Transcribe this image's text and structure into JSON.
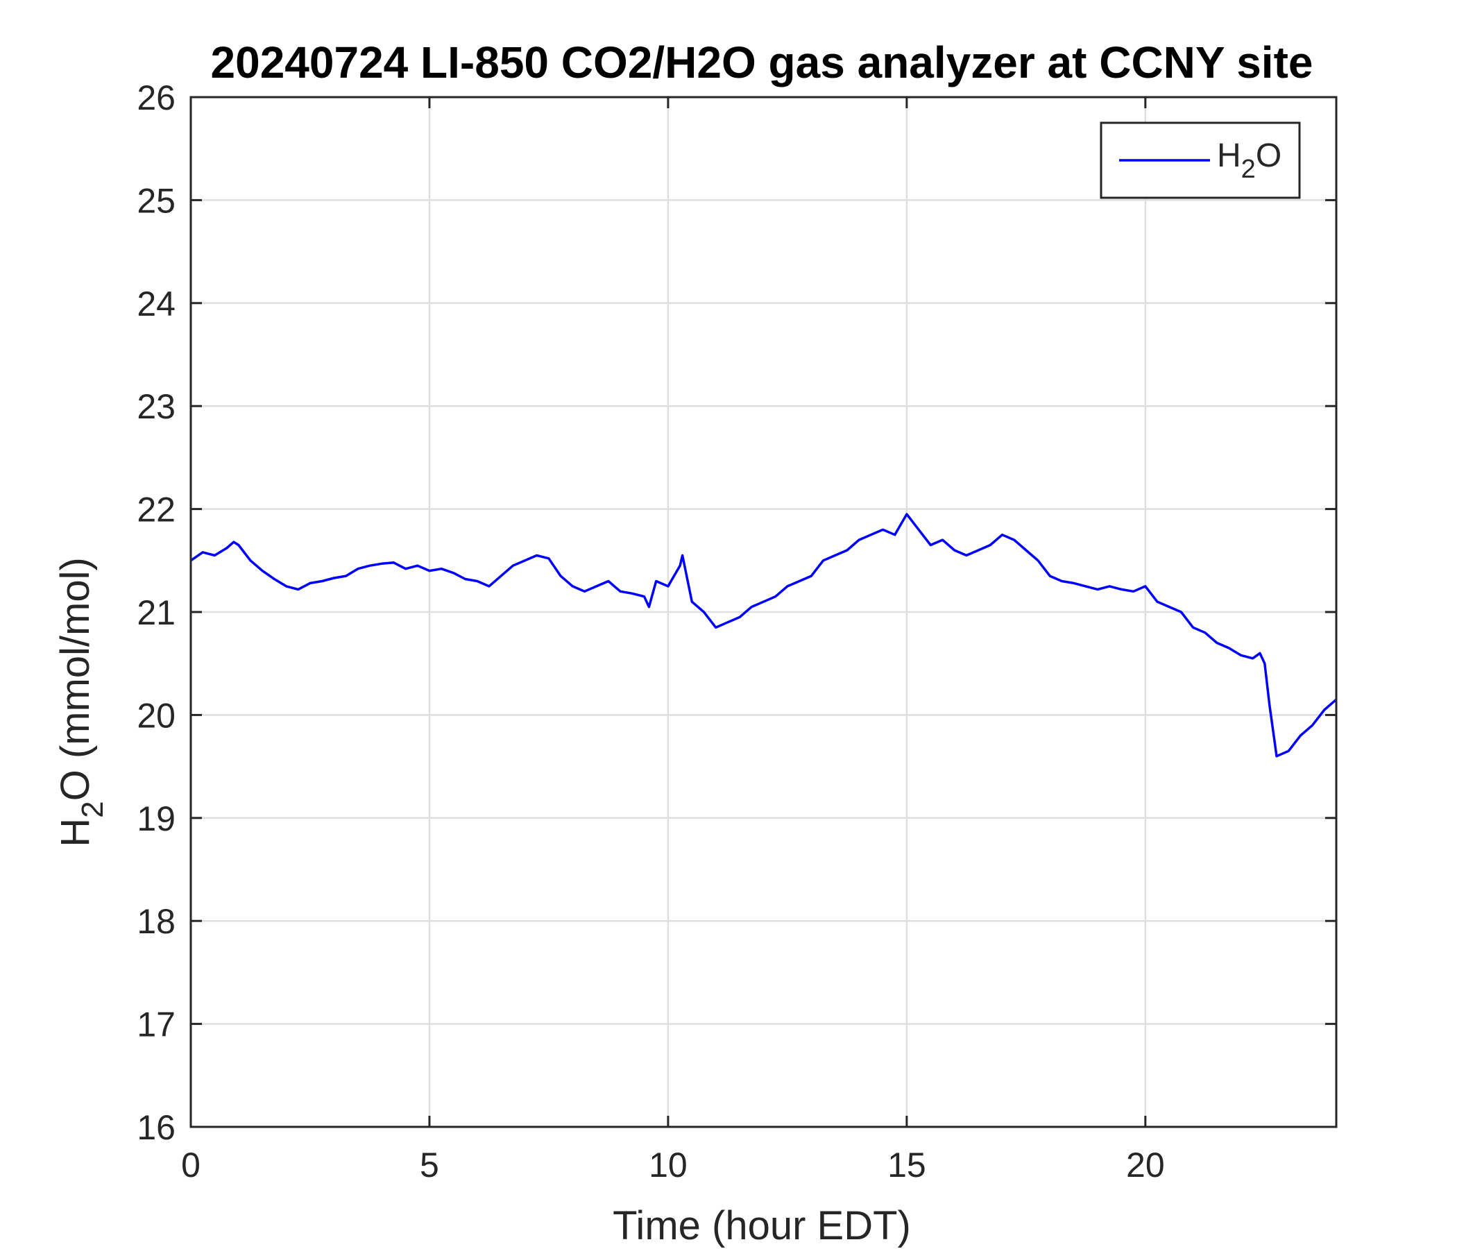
{
  "chart_data": {
    "type": "line",
    "title": "20240724 LI-850 CO2/H2O gas analyzer at CCNY site",
    "xlabel": "Time (hour EDT)",
    "ylabel": {
      "main": "H",
      "sub": "2",
      "rest": "O (mmol/mol)"
    },
    "xlim": [
      0,
      24
    ],
    "ylim": [
      16,
      26
    ],
    "xticks": [
      0,
      5,
      10,
      15,
      20
    ],
    "yticks": [
      16,
      17,
      18,
      19,
      20,
      21,
      22,
      23,
      24,
      25,
      26
    ],
    "grid": true,
    "legend_position": "top-right",
    "series": [
      {
        "name": {
          "main": "H",
          "sub": "2",
          "rest": "O"
        },
        "color": "#0000ff",
        "x": [
          0,
          0.25,
          0.5,
          0.75,
          0.9,
          1.0,
          1.25,
          1.5,
          1.75,
          2.0,
          2.25,
          2.5,
          2.75,
          3.0,
          3.25,
          3.5,
          3.75,
          4.0,
          4.25,
          4.5,
          4.75,
          5.0,
          5.25,
          5.5,
          5.75,
          6.0,
          6.25,
          6.5,
          6.75,
          7.0,
          7.25,
          7.5,
          7.75,
          8.0,
          8.25,
          8.5,
          8.75,
          9.0,
          9.25,
          9.5,
          9.6,
          9.75,
          10.0,
          10.25,
          10.3,
          10.5,
          10.75,
          11.0,
          11.25,
          11.5,
          11.75,
          12.0,
          12.25,
          12.5,
          12.75,
          13.0,
          13.25,
          13.5,
          13.75,
          14.0,
          14.25,
          14.5,
          14.75,
          15.0,
          15.25,
          15.5,
          15.75,
          16.0,
          16.25,
          16.5,
          16.75,
          17.0,
          17.25,
          17.5,
          17.75,
          18.0,
          18.25,
          18.5,
          18.75,
          19.0,
          19.25,
          19.5,
          19.75,
          20.0,
          20.25,
          20.5,
          20.75,
          21.0,
          21.25,
          21.5,
          21.75,
          22.0,
          22.25,
          22.4,
          22.5,
          22.6,
          22.75,
          23.0,
          23.25,
          23.5,
          23.75,
          24.0
        ],
        "y": [
          21.5,
          21.58,
          21.55,
          21.62,
          21.68,
          21.65,
          21.5,
          21.4,
          21.32,
          21.25,
          21.22,
          21.28,
          21.3,
          21.33,
          21.35,
          21.42,
          21.45,
          21.47,
          21.48,
          21.42,
          21.45,
          21.4,
          21.42,
          21.38,
          21.32,
          21.3,
          21.25,
          21.35,
          21.45,
          21.5,
          21.55,
          21.52,
          21.35,
          21.25,
          21.2,
          21.25,
          21.3,
          21.2,
          21.18,
          21.15,
          21.05,
          21.3,
          21.25,
          21.45,
          21.55,
          21.1,
          21.0,
          20.85,
          20.9,
          20.95,
          21.05,
          21.1,
          21.15,
          21.25,
          21.3,
          21.35,
          21.5,
          21.55,
          21.6,
          21.7,
          21.75,
          21.8,
          21.75,
          21.95,
          21.8,
          21.65,
          21.7,
          21.6,
          21.55,
          21.6,
          21.65,
          21.75,
          21.7,
          21.6,
          21.5,
          21.35,
          21.3,
          21.28,
          21.25,
          21.22,
          21.25,
          21.22,
          21.2,
          21.25,
          21.1,
          21.05,
          21.0,
          20.85,
          20.8,
          20.7,
          20.65,
          20.58,
          20.55,
          20.6,
          20.5,
          20.1,
          19.6,
          19.65,
          19.8,
          19.9,
          20.05,
          20.15
        ]
      }
    ]
  }
}
